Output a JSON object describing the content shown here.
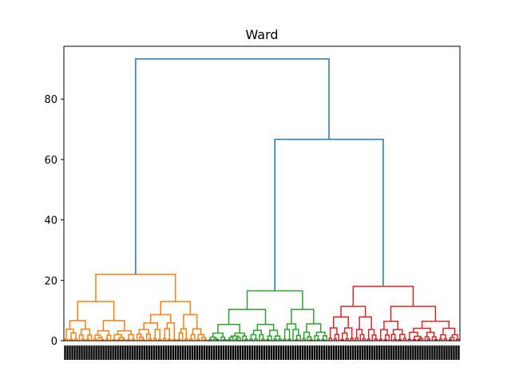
{
  "chart_data": {
    "type": "dendrogram",
    "title": "Ward",
    "xlabel": "",
    "ylabel": "",
    "ylim": [
      0,
      97.5
    ],
    "y_ticks": [
      0,
      20,
      40,
      60,
      80
    ],
    "leaf_labels_note_visible": "dense overlapping leaf index labels (illegible)",
    "clusters": [
      {
        "color": "#ff7f0e",
        "leaf_count": 60,
        "merge_height": 22
      },
      {
        "color": "#2ca02c",
        "leaf_count": 50,
        "merge_height": 16.5
      },
      {
        "color": "#d62728",
        "leaf_count": 55,
        "merge_height": 18
      }
    ],
    "top_merges": [
      {
        "height": 66.7,
        "children": [
          "green",
          "red"
        ],
        "color": "#1f77b4"
      },
      {
        "height": 93.3,
        "children": [
          "orange",
          "green+red"
        ],
        "color": "#1f77b4"
      }
    ],
    "colors": {
      "above_threshold": "#1f77b4",
      "cluster1": "#ff7f0e",
      "cluster2": "#2ca02c",
      "cluster3": "#d62728"
    }
  }
}
